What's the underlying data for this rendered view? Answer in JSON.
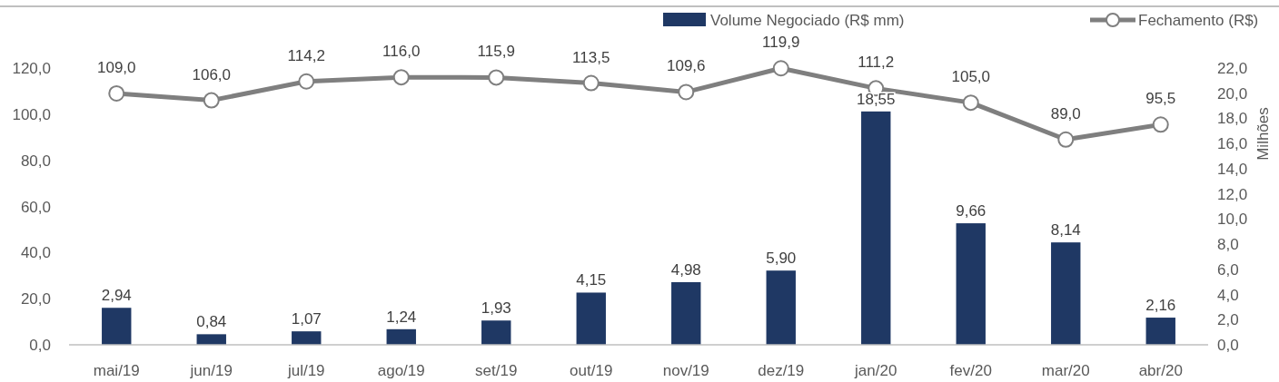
{
  "chart_data": {
    "type": "bar",
    "y2label": "Milhões",
    "categories": [
      "mai/19",
      "jun/19",
      "jul/19",
      "ago/19",
      "set/19",
      "out/19",
      "nov/19",
      "dez/19",
      "jan/20",
      "fev/20",
      "mar/20",
      "abr/20"
    ],
    "series": [
      {
        "name": "Volume Negociado (R$ mm)",
        "axis": "y2",
        "color": "#1f3864",
        "values": [
          2.94,
          0.84,
          1.07,
          1.24,
          1.93,
          4.15,
          4.98,
          5.9,
          18.55,
          9.66,
          8.14,
          2.16
        ],
        "value_labels": [
          "2,94",
          "0,84",
          "1,07",
          "1,24",
          "1,93",
          "4,15",
          "4,98",
          "5,90",
          "18,55",
          "9,66",
          "8,14",
          "2,16"
        ]
      },
      {
        "name": "Fechamento (R$)",
        "type": "line",
        "axis": "y",
        "color": "#7f7f7f",
        "marker": "circle",
        "values": [
          109.0,
          106.0,
          114.2,
          116.0,
          115.9,
          113.5,
          109.6,
          119.9,
          111.2,
          105.0,
          89.0,
          95.5
        ],
        "value_labels": [
          "109,0",
          "106,0",
          "114,2",
          "116,0",
          "115,9",
          "113,5",
          "109,6",
          "119,9",
          "111,2",
          "105,0",
          "89,0",
          "95,5"
        ]
      }
    ],
    "ylim": [
      0,
      120
    ],
    "yticks": [
      {
        "value": 0,
        "label": "0,0"
      },
      {
        "value": 20,
        "label": "20,0"
      },
      {
        "value": 40,
        "label": "40,0"
      },
      {
        "value": 60,
        "label": "60,0"
      },
      {
        "value": 80,
        "label": "80,0"
      },
      {
        "value": 100,
        "label": "100,0"
      },
      {
        "value": 120,
        "label": "120,0"
      }
    ],
    "y2lim": [
      0,
      22
    ],
    "y2ticks": [
      {
        "value": 0,
        "label": "0,0"
      },
      {
        "value": 2,
        "label": "2,0"
      },
      {
        "value": 4,
        "label": "4,0"
      },
      {
        "value": 6,
        "label": "6,0"
      },
      {
        "value": 8,
        "label": "8,0"
      },
      {
        "value": 10,
        "label": "10,0"
      },
      {
        "value": 12,
        "label": "12,0"
      },
      {
        "value": 14,
        "label": "14,0"
      },
      {
        "value": 16,
        "label": "16,0"
      },
      {
        "value": 18,
        "label": "18,0"
      },
      {
        "value": 20,
        "label": "20,0"
      },
      {
        "value": 22,
        "label": "22,0"
      }
    ],
    "legend": "top right",
    "grid": false
  }
}
